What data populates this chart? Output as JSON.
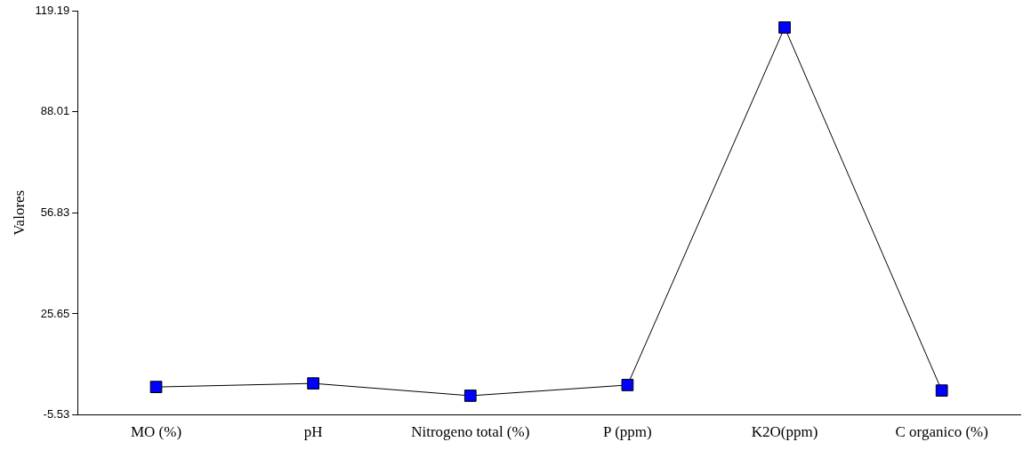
{
  "chart_data": {
    "type": "line",
    "ylabel": "Valores",
    "categories": [
      "MO (%)",
      "pH",
      "Nitrogeno total (%)",
      "P (ppm)",
      "K2O(ppm)",
      "C organico (%)"
    ],
    "series": [
      {
        "color": "#0000ff",
        "values": [
          3.1,
          4.2,
          0.4,
          3.7,
          114.0,
          2.0
        ]
      }
    ],
    "ylim": [
      -5.53,
      119.19
    ],
    "yticks": [
      -5.53,
      25.65,
      56.83,
      88.01,
      119.19
    ],
    "grid": false,
    "legend": false,
    "marker": "square",
    "line_style": "solid"
  }
}
